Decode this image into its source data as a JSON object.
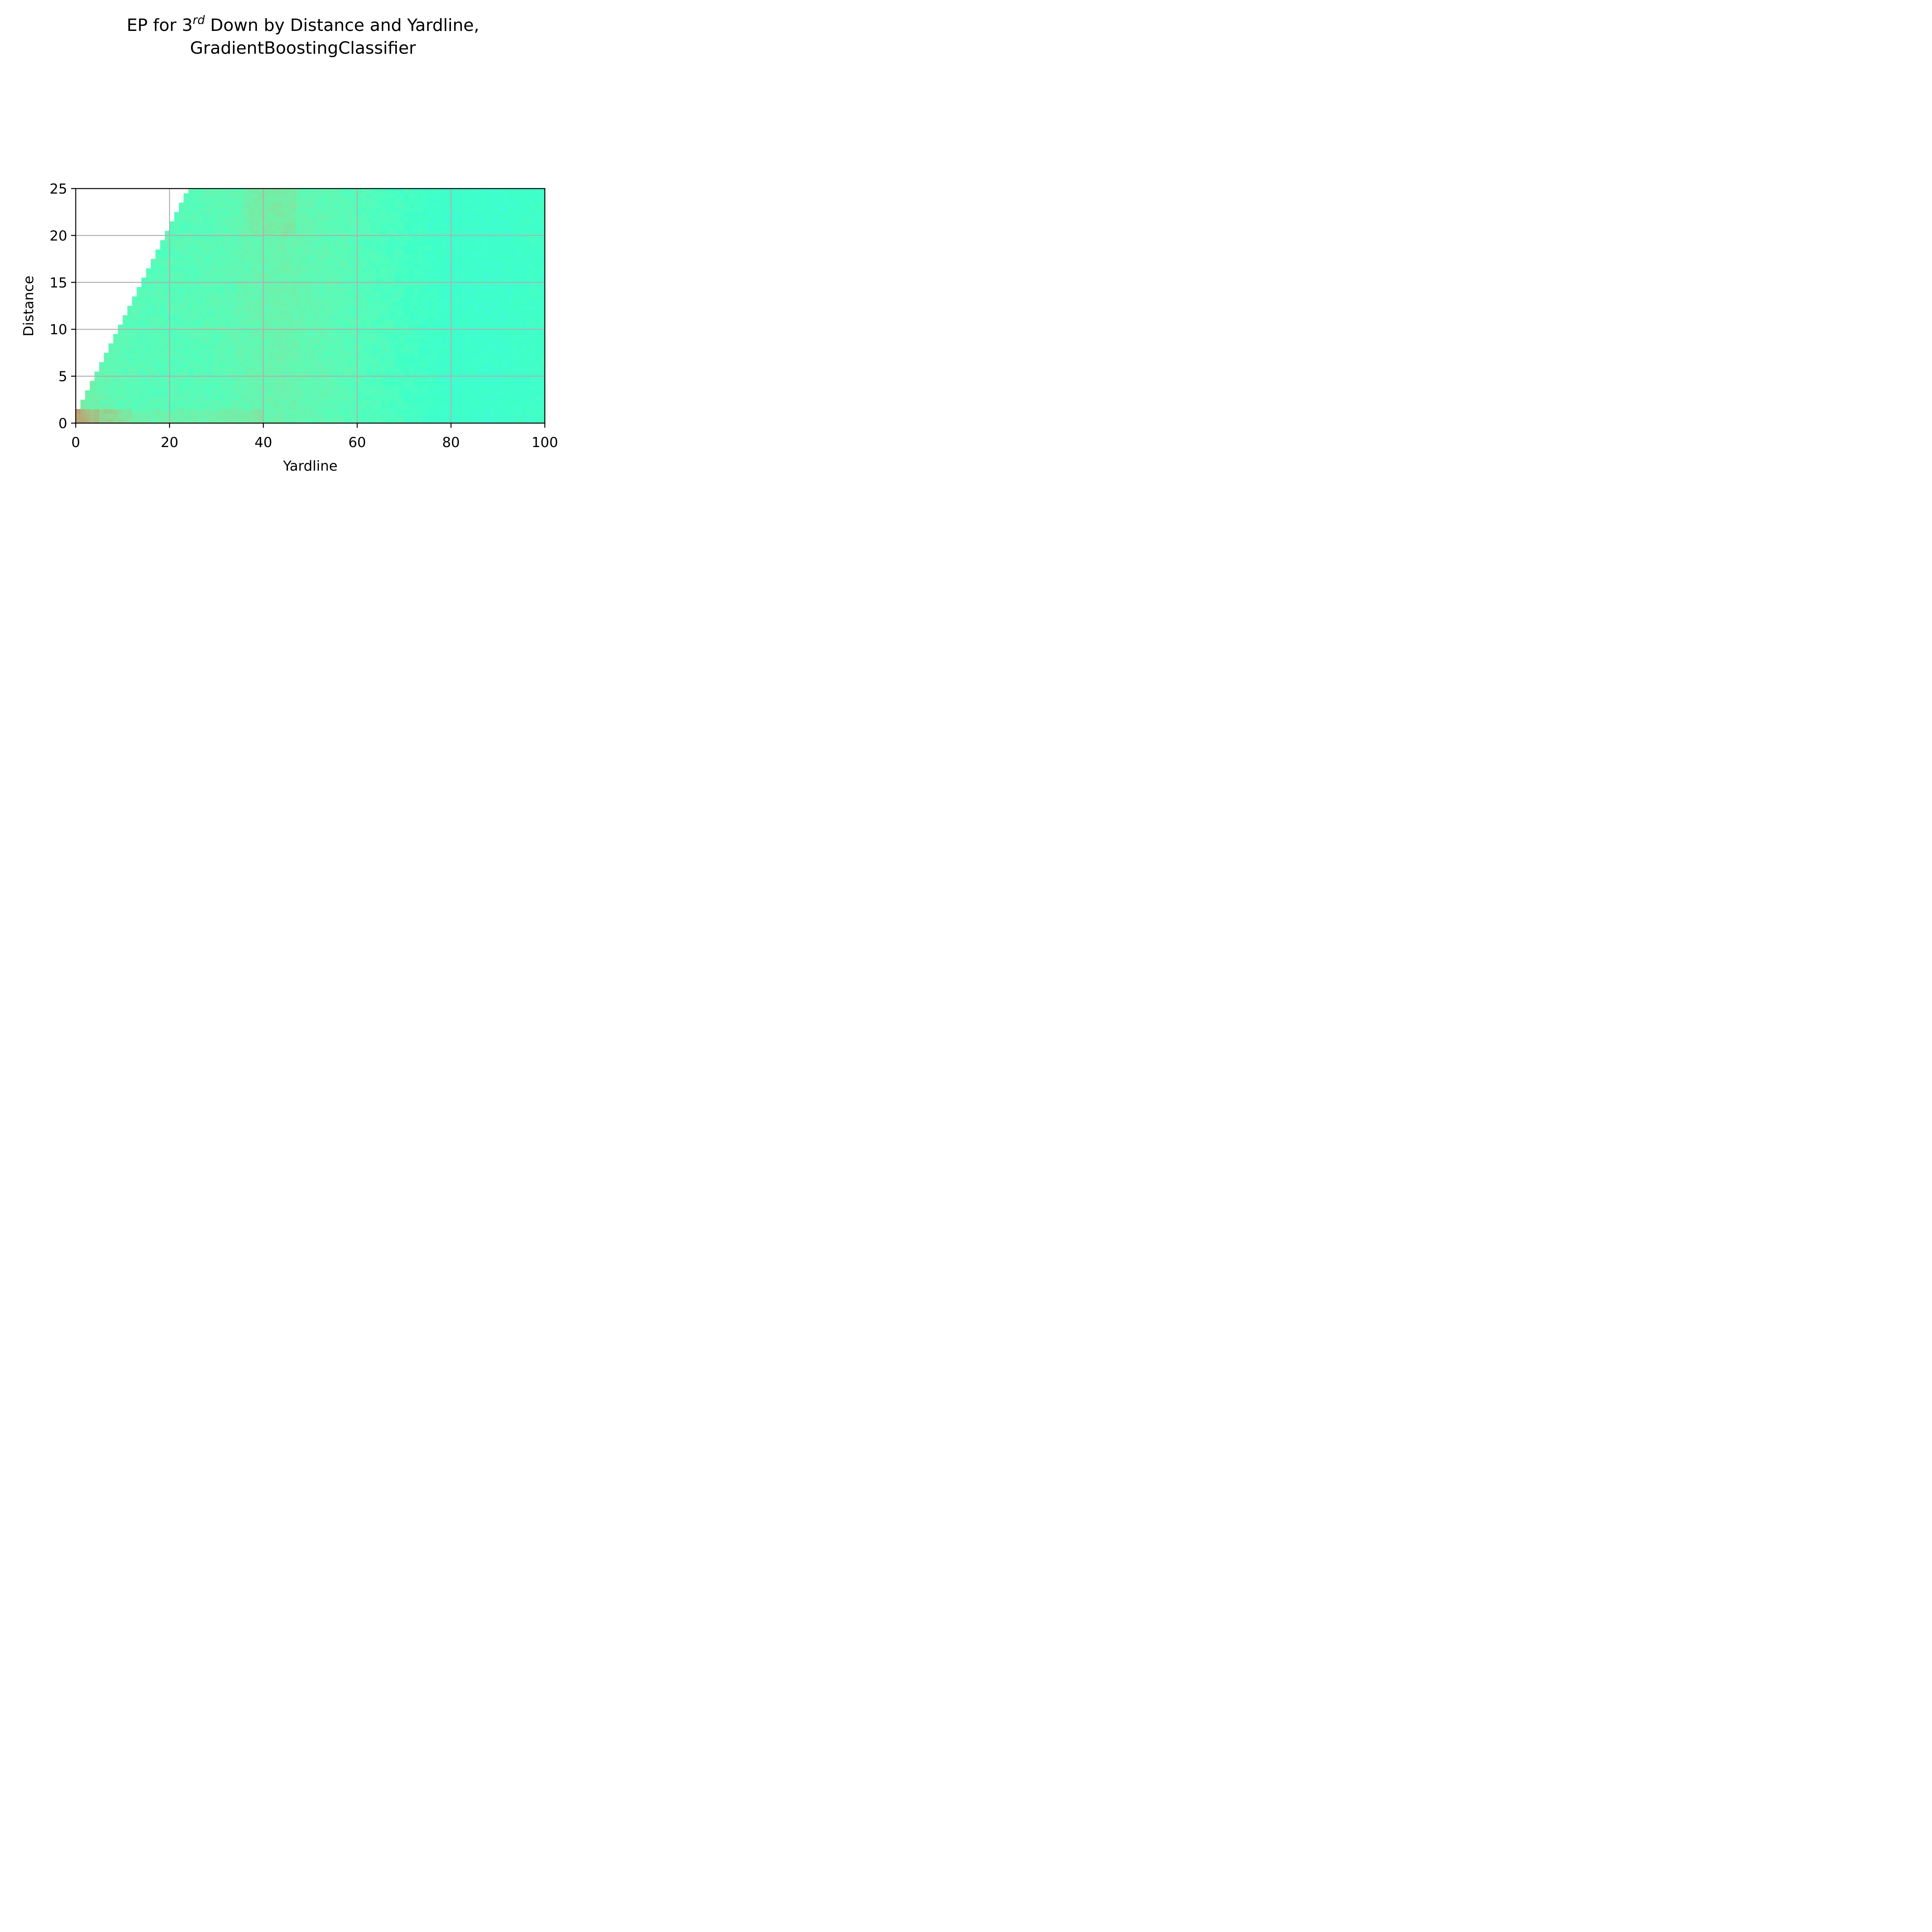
{
  "chart_data": {
    "type": "heatmap",
    "title_line1_pre": "EP for 3",
    "title_line1_sup": "rd",
    "title_line1_post": " Down by Distance and Yardline,",
    "title_line2": "GradientBoostingClassifier",
    "xlabel": "Yardline",
    "ylabel": "Distance",
    "xlim": [
      0,
      100
    ],
    "ylim": [
      0,
      25
    ],
    "xticks": [
      "0",
      "20",
      "40",
      "60",
      "80",
      "100"
    ],
    "yticks": [
      "0",
      "5",
      "10",
      "15",
      "20",
      "25"
    ],
    "grid": true,
    "colormap": "rainbow",
    "valid_region": "distance <= yardline",
    "color_value_profile": {
      "yardline": [
        0,
        2,
        4,
        6,
        10,
        15,
        20,
        30,
        40,
        45,
        50,
        60,
        70,
        80,
        90,
        100
      ],
      "level": [
        0.66,
        0.64,
        0.62,
        0.6,
        0.58,
        0.56,
        0.56,
        0.57,
        0.6,
        0.61,
        0.59,
        0.56,
        0.52,
        0.48,
        0.47,
        0.5
      ]
    },
    "goal_line_row_levels": {
      "distance": [
        0,
        1
      ],
      "note": "distance 0-1 row is warmer (orange/red) near yardline 0-12"
    }
  }
}
